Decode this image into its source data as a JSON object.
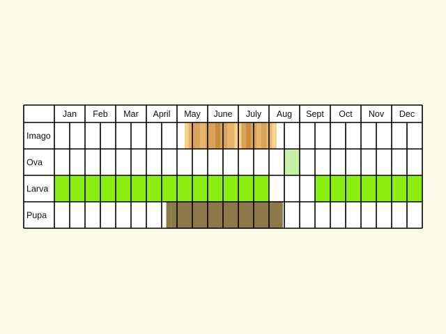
{
  "chart_data": {
    "type": "table",
    "months": [
      "Jan",
      "Feb",
      "Mar",
      "April",
      "May",
      "June",
      "July",
      "Aug",
      "Sept",
      "Oct",
      "Nov",
      "Dec"
    ],
    "rows": [
      {
        "label": "Imago",
        "segments": [
          {
            "start": 8.5,
            "end": 8.75,
            "color": "#f5d28c"
          },
          {
            "start": 8.75,
            "end": 9.0,
            "color": "#e6b46a"
          },
          {
            "start": 9.0,
            "end": 9.5,
            "color": "#d9a35a"
          },
          {
            "start": 9.5,
            "end": 9.85,
            "color": "#e6b46a"
          },
          {
            "start": 9.85,
            "end": 10.5,
            "color": "#d9a35a"
          },
          {
            "start": 10.5,
            "end": 10.85,
            "color": "#c98d3e"
          },
          {
            "start": 10.85,
            "end": 11.3,
            "color": "#d9a35a"
          },
          {
            "start": 11.3,
            "end": 11.75,
            "color": "#e6b46a"
          },
          {
            "start": 11.75,
            "end": 12.2,
            "color": "#f5d28c"
          },
          {
            "start": 12.2,
            "end": 12.5,
            "color": "#d9a35a"
          },
          {
            "start": 12.5,
            "end": 12.85,
            "color": "#c98d3e"
          },
          {
            "start": 12.85,
            "end": 13.2,
            "color": "#d9a35a"
          },
          {
            "start": 13.2,
            "end": 13.5,
            "color": "#e6b46a"
          },
          {
            "start": 13.5,
            "end": 13.85,
            "color": "#d9a35a"
          },
          {
            "start": 13.85,
            "end": 14.2,
            "color": "#e6b46a"
          },
          {
            "start": 14.2,
            "end": 14.5,
            "color": "#f5d28c"
          }
        ]
      },
      {
        "label": "Ova",
        "segments": [
          {
            "start": 15.0,
            "end": 16.0,
            "color": "#c8f0a8"
          }
        ]
      },
      {
        "label": "Larva",
        "segments": [
          {
            "start": 0,
            "end": 14,
            "color": "#8cee0e"
          },
          {
            "start": 17,
            "end": 24,
            "color": "#8cee0e"
          }
        ]
      },
      {
        "label": "Pupa",
        "segments": [
          {
            "start": 7.3,
            "end": 7.6,
            "color": "#8c7a46"
          },
          {
            "start": 7.6,
            "end": 14.9,
            "color": "#8c7848"
          }
        ]
      }
    ],
    "grid": true,
    "subdivisions_per_month": 2
  }
}
